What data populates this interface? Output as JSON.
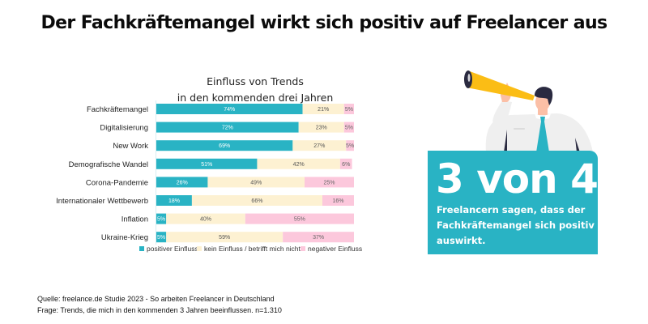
{
  "headline": "Der Fachkräftemangel wirkt sich positiv auf Freelancer aus",
  "colors": {
    "positive": "#29b3c4",
    "neutral": "#fdf1d2",
    "negative": "#fcc8dc",
    "accent_box": "#29b3c4",
    "telescope": "#fbbd15"
  },
  "chart_data": {
    "type": "bar",
    "orientation": "horizontal",
    "stacked": true,
    "title_line1": "Einfluss von Trends",
    "title_line2": "in den kommenden drei Jahren",
    "xlabel": "",
    "ylabel": "",
    "xlim": [
      0,
      100
    ],
    "unit": "%",
    "grid": false,
    "legend_position": "bottom",
    "categories": [
      "Fachkräftemangel",
      "Digitalisierung",
      "New Work",
      "Demografische Wandel",
      "Corona-Pandemie",
      "Internationaler Wettbewerb",
      "Inflation",
      "Ukraine-Krieg"
    ],
    "series": [
      {
        "name": "positiver Einfluss",
        "values": [
          74,
          72,
          69,
          51,
          26,
          18,
          5,
          5
        ]
      },
      {
        "name": "kein Einfluss / betrifft mich nicht",
        "values": [
          21,
          23,
          27,
          42,
          49,
          66,
          40,
          59
        ]
      },
      {
        "name": "negativer Einfluss",
        "values": [
          5,
          5,
          5,
          6,
          25,
          16,
          55,
          37
        ]
      }
    ]
  },
  "stat": {
    "big": "3 von 4",
    "text": "Freelancern sagen, dass der Fachkräftemangel sich positiv auswirkt."
  },
  "illustration": {
    "icon": "man-with-telescope-illustration"
  },
  "source": {
    "line1": "Quelle: freelance.de Studie 2023 - So arbeiten Freelancer in Deutschland",
    "line2": "Frage: Trends, die mich in den kommenden 3 Jahren beeinflussen. n=1.310"
  }
}
